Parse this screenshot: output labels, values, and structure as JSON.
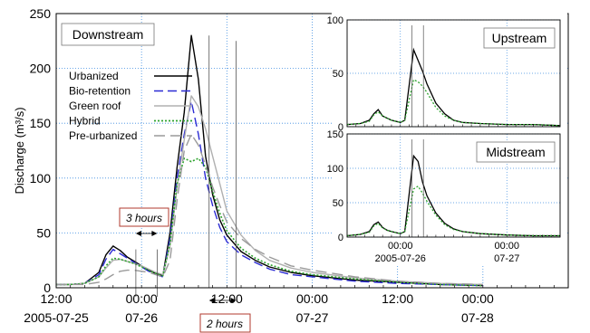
{
  "chart_data": [
    {
      "panel": "Downstream",
      "type": "line",
      "title": "Downstream",
      "ylabel": "Discharge (m³/s)",
      "xlim_hours": [
        0,
        72
      ],
      "ylim": [
        0,
        250
      ],
      "yticks": [
        "0",
        "50",
        "100",
        "150",
        "200",
        "250"
      ],
      "xticks": [
        {
          "h": 0,
          "line1": "12:00",
          "line2": "2005-07-25"
        },
        {
          "h": 12,
          "line1": "00:00",
          "line2": "07-26"
        },
        {
          "h": 24,
          "line1": "12:00",
          "line2": ""
        },
        {
          "h": 36,
          "line1": "00:00",
          "line2": "07-27"
        },
        {
          "h": 48,
          "line1": "12:00",
          "line2": ""
        },
        {
          "h": 60,
          "line1": "00:00",
          "line2": "07-28"
        }
      ],
      "x_hours": [
        0,
        2,
        4,
        6,
        7,
        8,
        9,
        10,
        11,
        12,
        13,
        14,
        15,
        16,
        17,
        18,
        19,
        20,
        21,
        22,
        23,
        24,
        26,
        28,
        30,
        33,
        36,
        42,
        48,
        54,
        60
      ],
      "series": [
        {
          "name": "Urbanized",
          "color": "#000000",
          "dash": "",
          "width": 1.4,
          "values": [
            3,
            3,
            4,
            14,
            30,
            38,
            34,
            28,
            24,
            20,
            16,
            13,
            11,
            50,
            110,
            160,
            230,
            190,
            120,
            85,
            62,
            48,
            33,
            25,
            19,
            14,
            11,
            7,
            5,
            3,
            2
          ]
        },
        {
          "name": "Bio-retention",
          "color": "#2b2bd4",
          "dash": "10,5",
          "width": 1.4,
          "values": [
            3,
            3,
            4,
            12,
            26,
            35,
            31,
            27,
            23,
            19,
            15,
            12,
            10,
            45,
            100,
            140,
            170,
            140,
            100,
            75,
            55,
            42,
            30,
            23,
            17,
            12,
            10,
            6,
            4,
            3,
            2
          ]
        },
        {
          "name": "Green roof",
          "color": "#b0b0b0",
          "dash": "",
          "width": 1.4,
          "values": [
            3,
            3,
            4,
            10,
            18,
            25,
            26,
            24,
            22,
            20,
            17,
            14,
            12,
            38,
            92,
            135,
            175,
            165,
            145,
            120,
            95,
            70,
            48,
            34,
            25,
            18,
            14,
            9,
            6,
            4,
            3
          ]
        },
        {
          "name": "Hybrid",
          "color": "#2ea32e",
          "dash": "2,2",
          "width": 1.6,
          "values": [
            3,
            3,
            4,
            10,
            20,
            27,
            26,
            24,
            22,
            19,
            16,
            13,
            11,
            40,
            95,
            118,
            115,
            118,
            110,
            88,
            68,
            52,
            36,
            27,
            21,
            15,
            12,
            8,
            5,
            3,
            2
          ]
        },
        {
          "name": "Pre-urbanized",
          "color": "#9a9a9a",
          "dash": "12,6",
          "width": 1.4,
          "values": [
            3,
            3,
            3,
            5,
            8,
            12,
            15,
            16,
            16,
            15,
            14,
            12,
            10,
            25,
            80,
            125,
            140,
            130,
            112,
            92,
            75,
            60,
            45,
            35,
            28,
            20,
            16,
            10,
            6,
            4,
            3
          ]
        }
      ],
      "annotations": [
        {
          "text": "3 hours"
        },
        {
          "text": "2 hours"
        }
      ]
    },
    {
      "panel": "Upstream",
      "type": "line",
      "title": "Upstream",
      "ylim": [
        0,
        100
      ],
      "yticks": [
        "0",
        "50",
        "100"
      ],
      "x_hours": [
        0,
        3,
        5,
        6,
        7,
        8,
        9,
        10,
        12,
        13,
        15,
        16,
        17,
        18,
        20,
        22,
        24,
        26,
        30,
        36,
        42,
        48
      ],
      "series": [
        {
          "name": "Urbanized",
          "color": "#000000",
          "dash": "",
          "values": [
            2,
            3,
            6,
            12,
            16,
            10,
            8,
            6,
            4,
            6,
            72,
            62,
            52,
            40,
            22,
            12,
            6,
            4,
            3,
            2,
            2,
            1
          ]
        },
        {
          "name": "Hybrid",
          "color": "#2ea32e",
          "dash": "2,2",
          "values": [
            2,
            3,
            5,
            11,
            14,
            10,
            8,
            6,
            4,
            6,
            44,
            42,
            38,
            32,
            18,
            10,
            6,
            4,
            3,
            2,
            2,
            1
          ]
        }
      ]
    },
    {
      "panel": "Midstream",
      "type": "line",
      "title": "Midstream",
      "ylim": [
        0,
        150
      ],
      "yticks": [
        "0",
        "50",
        "100",
        "150"
      ],
      "xticks": [
        {
          "h": 12,
          "line1": "00:00",
          "line2": "2005-07-26"
        },
        {
          "h": 36,
          "line1": "00:00",
          "line2": "07-27"
        }
      ],
      "x_hours": [
        0,
        3,
        5,
        6,
        7,
        8,
        9,
        10,
        12,
        13,
        15,
        16,
        17,
        18,
        20,
        22,
        24,
        26,
        30,
        36,
        42,
        48
      ],
      "series": [
        {
          "name": "Urbanized",
          "color": "#000000",
          "dash": "",
          "values": [
            2,
            4,
            8,
            18,
            22,
            14,
            10,
            8,
            5,
            8,
            118,
            110,
            80,
            60,
            35,
            20,
            12,
            8,
            5,
            3,
            2,
            2
          ]
        },
        {
          "name": "Hybrid",
          "color": "#2ea32e",
          "dash": "2,2",
          "values": [
            2,
            4,
            7,
            16,
            20,
            13,
            10,
            8,
            5,
            8,
            70,
            74,
            64,
            52,
            32,
            18,
            11,
            8,
            5,
            3,
            2,
            2
          ]
        }
      ]
    }
  ]
}
